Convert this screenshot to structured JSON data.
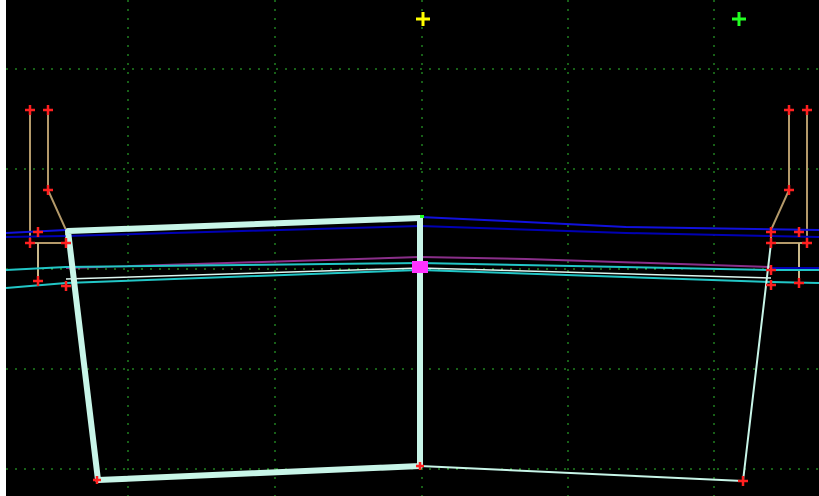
{
  "view": {
    "type": "cross-section-editor",
    "background_color": "#000000",
    "frame_color": "#ffffff",
    "grid": {
      "visible": true,
      "style": "dotted",
      "color": "#2fbf2f"
    }
  },
  "markers": {
    "vertex_marker_color": "#ff2020",
    "centerline_marker_color": "#ffff00",
    "reference_marker_color": "#22ff22",
    "selected_point_color": "#ff33ff"
  },
  "layers": [
    {
      "name": "bench-left",
      "color": "#b49a6a"
    },
    {
      "name": "bench-right",
      "color": "#b49a6a"
    },
    {
      "name": "profile-top",
      "color": "#1111dd"
    },
    {
      "name": "profile-bottom",
      "color": "#0000b4"
    },
    {
      "name": "layer-purple",
      "color": "#8a2f8a"
    },
    {
      "name": "layer-cyan-a",
      "color": "#22c6c6"
    },
    {
      "name": "layer-cyan-b",
      "color": "#22c6c6"
    },
    {
      "name": "section-thick",
      "color": "#c8f5e8"
    },
    {
      "name": "section-thin",
      "color": "#c8f5e8"
    }
  ]
}
